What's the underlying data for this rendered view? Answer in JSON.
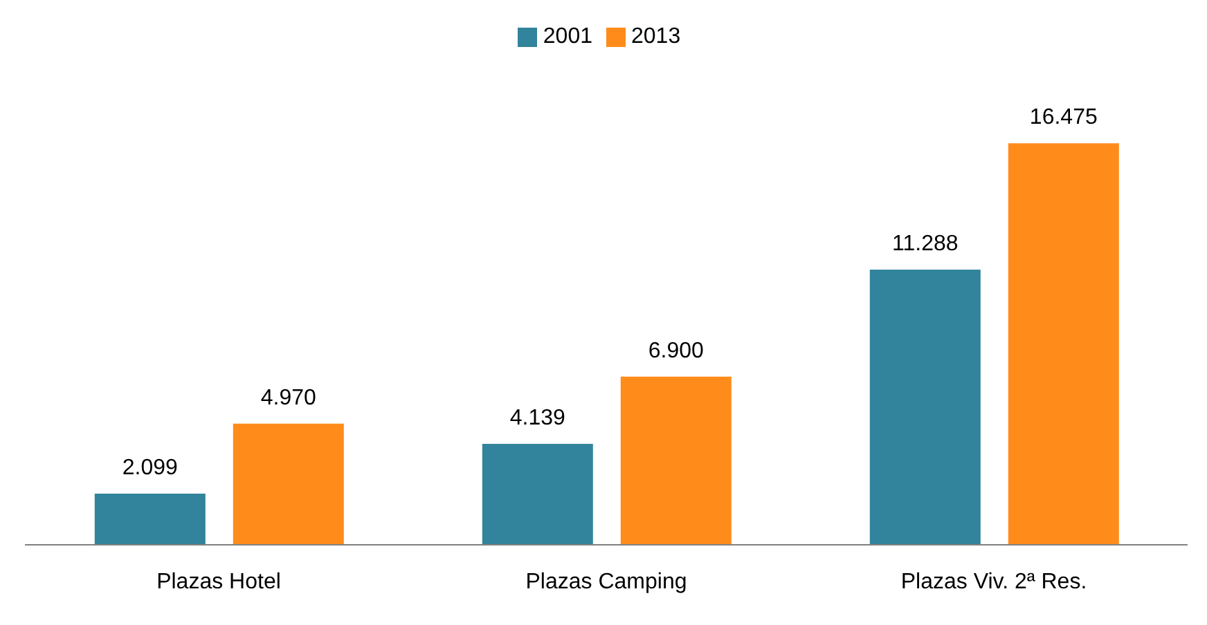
{
  "chart_data": {
    "type": "bar",
    "categories": [
      "Plazas Hotel",
      "Plazas Camping",
      "Plazas Viv. 2ª Res."
    ],
    "series": [
      {
        "name": "2001",
        "color": "#31849b",
        "values": [
          2099,
          4139,
          11288
        ],
        "value_labels": [
          "2.099",
          "4.139",
          "11.288"
        ]
      },
      {
        "name": "2013",
        "color": "#ff8c1a",
        "values": [
          4970,
          6900,
          16475
        ],
        "value_labels": [
          "4.970",
          "6.900",
          "16.475"
        ]
      }
    ],
    "legend": "top"
  }
}
